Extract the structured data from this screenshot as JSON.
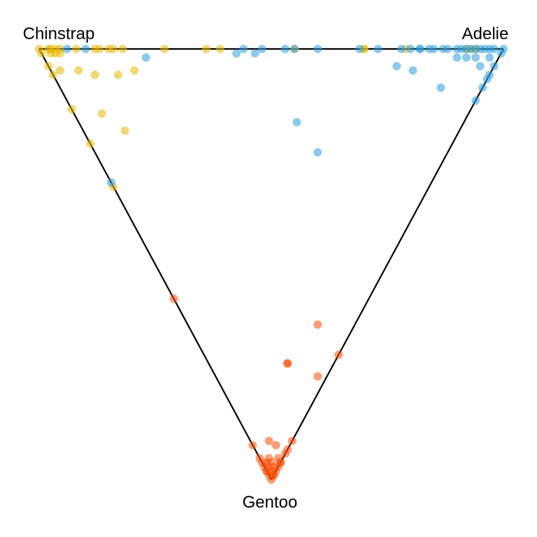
{
  "chart_data": {
    "type": "scatter",
    "layout": "ternary",
    "vertices": [
      {
        "label": "Chinstrap",
        "label_position": "top-left"
      },
      {
        "label": "Adelie",
        "label_position": "top-right"
      },
      {
        "label": "Gentoo",
        "label_position": "bottom"
      }
    ],
    "coordinate_order": [
      "Chinstrap",
      "Adelie",
      "Gentoo"
    ],
    "grid": false,
    "legend": "none",
    "point_opacity": 0.55,
    "series": [
      {
        "color": "#E7B800",
        "points": [
          [
            1.0,
            0.0,
            0.0
          ],
          [
            0.99,
            0.0,
            0.01
          ],
          [
            0.98,
            0.02,
            0.0
          ],
          [
            0.975,
            0.025,
            0.0
          ],
          [
            0.97,
            0.02,
            0.01
          ],
          [
            0.965,
            0.035,
            0.0
          ],
          [
            0.96,
            0.03,
            0.01
          ],
          [
            0.955,
            0.045,
            0.0
          ],
          [
            0.95,
            0.04,
            0.01
          ],
          [
            0.96,
            0.0,
            0.04
          ],
          [
            0.94,
            0.0,
            0.06
          ],
          [
            0.93,
            0.02,
            0.05
          ],
          [
            0.92,
            0.08,
            0.0
          ],
          [
            0.89,
            0.06,
            0.05
          ],
          [
            0.88,
            0.12,
            0.0
          ],
          [
            0.87,
            0.13,
            0.0
          ],
          [
            0.85,
            0.15,
            0.0
          ],
          [
            0.84,
            0.16,
            0.0
          ],
          [
            0.85,
            0.09,
            0.06
          ],
          [
            0.86,
            0.0,
            0.14
          ],
          [
            0.82,
            0.18,
            0.0
          ],
          [
            0.8,
            0.14,
            0.06
          ],
          [
            0.79,
            0.06,
            0.15
          ],
          [
            0.73,
            0.27,
            0.0
          ],
          [
            0.77,
            0.18,
            0.05
          ],
          [
            0.78,
            0.0,
            0.22
          ],
          [
            0.68,
            0.0,
            0.32
          ],
          [
            0.72,
            0.09,
            0.19
          ],
          [
            0.64,
            0.36,
            0.0
          ],
          [
            0.61,
            0.39,
            0.0
          ],
          [
            0.45,
            0.55,
            0.0
          ],
          [
            0.3,
            0.7,
            0.0
          ],
          [
            0.3,
            0.7,
            0.0
          ],
          [
            0.21,
            0.79,
            0.0
          ],
          [
            0.08,
            0.92,
            0.0
          ],
          [
            0.07,
            0.93,
            0.0
          ],
          [
            0.06,
            0.94,
            0.0
          ]
        ]
      },
      {
        "color": "#2E9FDF",
        "points": [
          [
            0.0,
            1.0,
            0.0
          ],
          [
            0.0,
            0.99,
            0.01
          ],
          [
            0.02,
            0.98,
            0.0
          ],
          [
            0.03,
            0.97,
            0.0
          ],
          [
            0.04,
            0.96,
            0.0
          ],
          [
            0.05,
            0.95,
            0.0
          ],
          [
            0.06,
            0.94,
            0.0
          ],
          [
            0.07,
            0.93,
            0.0
          ],
          [
            0.08,
            0.92,
            0.0
          ],
          [
            0.09,
            0.91,
            0.0
          ],
          [
            0.1,
            0.9,
            0.0
          ],
          [
            0.12,
            0.88,
            0.0
          ],
          [
            0.13,
            0.87,
            0.0
          ],
          [
            0.02,
            0.96,
            0.02
          ],
          [
            0.03,
            0.93,
            0.04
          ],
          [
            0.05,
            0.93,
            0.02
          ],
          [
            0.0,
            0.96,
            0.04
          ],
          [
            0.0,
            0.94,
            0.06
          ],
          [
            0.0,
            0.93,
            0.07
          ],
          [
            0.0,
            0.91,
            0.09
          ],
          [
            0.0,
            0.88,
            0.12
          ],
          [
            0.09,
            0.89,
            0.02
          ],
          [
            0.07,
            0.91,
            0.02
          ],
          [
            0.15,
            0.85,
            0.0
          ],
          [
            0.16,
            0.84,
            0.0
          ],
          [
            0.18,
            0.82,
            0.0
          ],
          [
            0.22,
            0.78,
            0.0
          ],
          [
            0.2,
            0.8,
            0.0
          ],
          [
            0.21,
            0.75,
            0.04
          ],
          [
            0.17,
            0.78,
            0.05
          ],
          [
            0.09,
            0.82,
            0.09
          ],
          [
            0.18,
            0.82,
            0.0
          ],
          [
            0.27,
            0.73,
            0.0
          ],
          [
            0.31,
            0.69,
            0.0
          ],
          [
            0.4,
            0.6,
            0.0
          ],
          [
            0.45,
            0.55,
            0.0
          ],
          [
            0.47,
            0.53,
            0.0
          ],
          [
            0.52,
            0.48,
            0.0
          ],
          [
            0.56,
            0.44,
            0.0
          ],
          [
            0.57,
            0.42,
            0.01
          ],
          [
            0.53,
            0.46,
            0.01
          ],
          [
            0.36,
            0.47,
            0.17
          ],
          [
            0.28,
            0.48,
            0.24
          ],
          [
            0.69,
            0.0,
            0.31
          ],
          [
            0.76,
            0.22,
            0.02
          ],
          [
            0.9,
            0.1,
            0.0
          ],
          [
            0.94,
            0.06,
            0.0
          ]
        ]
      },
      {
        "color": "#FC4E07",
        "points": [
          [
            0.42,
            0.0,
            0.58
          ],
          [
            0.0,
            0.0,
            1.0
          ],
          [
            0.01,
            0.0,
            0.99
          ],
          [
            0.0,
            0.01,
            0.99
          ],
          [
            0.02,
            0.0,
            0.98
          ],
          [
            0.0,
            0.02,
            0.98
          ],
          [
            0.01,
            0.02,
            0.97
          ],
          [
            0.02,
            0.01,
            0.97
          ],
          [
            0.03,
            0.0,
            0.97
          ],
          [
            0.0,
            0.03,
            0.97
          ],
          [
            0.05,
            0.0,
            0.95
          ],
          [
            0.02,
            0.02,
            0.96
          ],
          [
            0.01,
            0.04,
            0.95
          ],
          [
            0.03,
            0.02,
            0.95
          ],
          [
            0.02,
            0.0,
            0.98
          ],
          [
            0.0,
            0.01,
            0.99
          ],
          [
            0.01,
            0.01,
            0.98
          ],
          [
            0.03,
            0.01,
            0.96
          ],
          [
            0.04,
            0.0,
            0.96
          ],
          [
            0.0,
            0.04,
            0.96
          ],
          [
            0.08,
            0.0,
            0.92
          ],
          [
            0.0,
            0.07,
            0.93
          ],
          [
            0.0,
            0.06,
            0.94
          ],
          [
            0.1,
            0.17,
            0.73
          ],
          [
            0.1,
            0.17,
            0.73
          ],
          [
            0.08,
            0.28,
            0.64
          ],
          [
            0.02,
            0.22,
            0.76
          ],
          [
            0.0,
            0.29,
            0.71
          ],
          [
            0.0,
            0.09,
            0.91
          ],
          [
            0.0,
            0.04,
            0.96
          ],
          [
            0.05,
            0.04,
            0.91
          ],
          [
            0.03,
            0.05,
            0.92
          ]
        ]
      }
    ]
  }
}
